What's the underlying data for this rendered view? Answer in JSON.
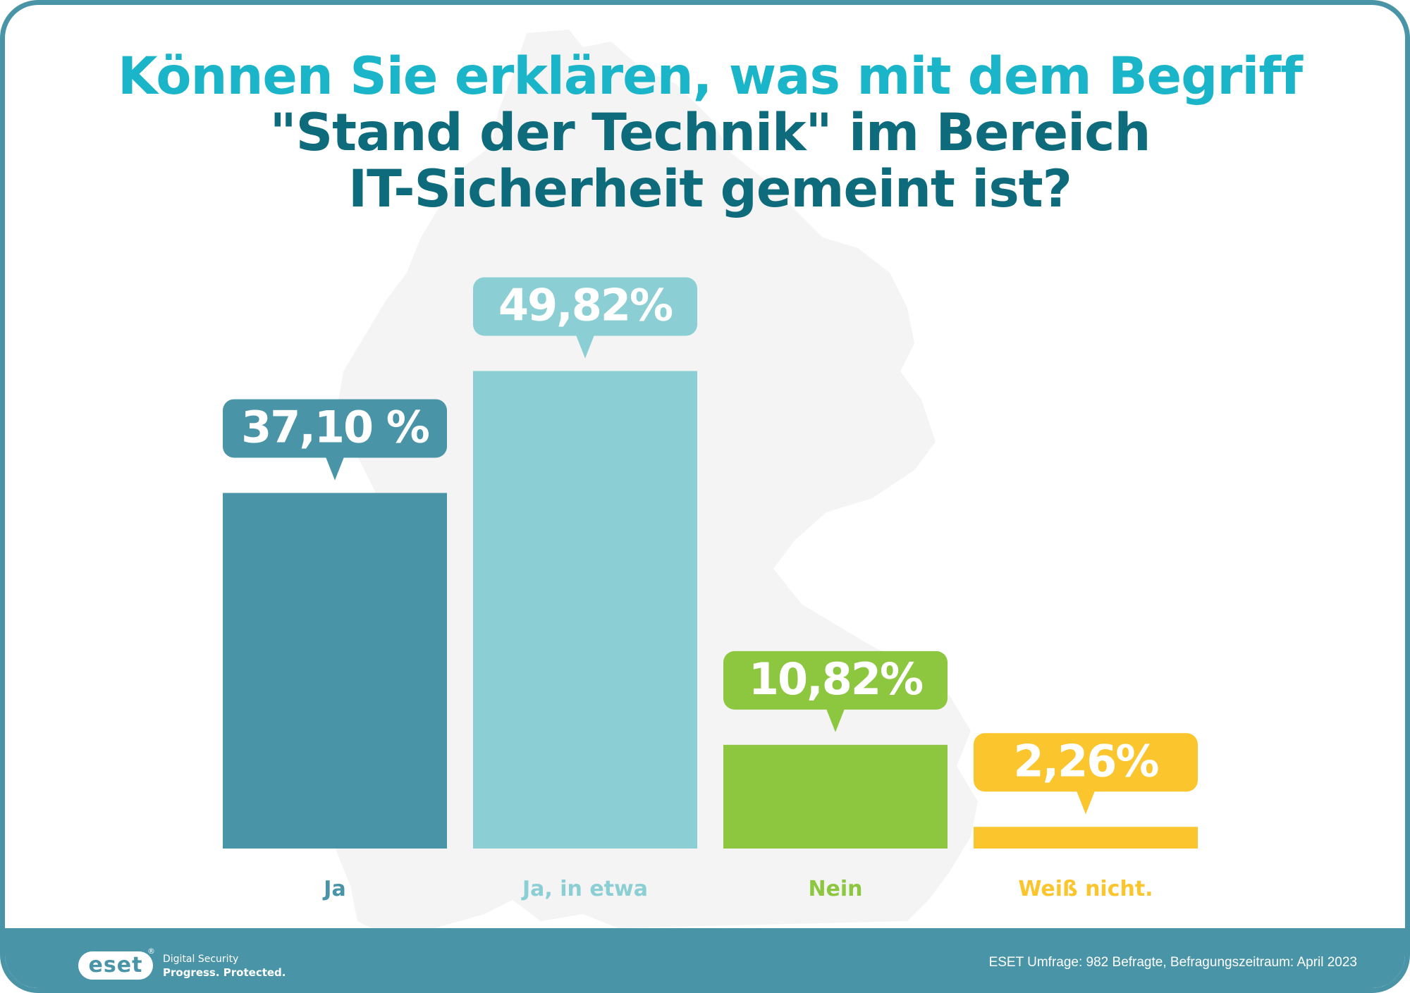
{
  "title": {
    "line1": "Können Sie erklären, was mit dem Begriff",
    "line2": "\"Stand der Technik\" im Bereich",
    "line3": "IT-Sicherheit gemeint ist?"
  },
  "chart_data": {
    "type": "bar",
    "categories": [
      "Ja",
      "Ja, in etwa",
      "Nein",
      "Weiß nicht."
    ],
    "values": [
      37.1,
      49.82,
      10.82,
      2.26
    ],
    "value_labels": [
      "37,10 %",
      "49,82%",
      "10,82%",
      "2,26%"
    ],
    "colors": [
      "#4a94a8",
      "#8bcfd4",
      "#8dc63f",
      "#fbc52d"
    ],
    "ylim": [
      0,
      100
    ],
    "grid": false,
    "legend": false
  },
  "footer": {
    "logo_text": "eset",
    "logo_reg": "®",
    "tagline_1": "Digital Security",
    "tagline_2": "Progress. Protected.",
    "source": "ESET Umfrage: 982 Befragte, Befragungszeitraum: April 2023"
  },
  "colors": {
    "frame": "#4a94a8",
    "title_accent": "#1ab5c8",
    "title_dark": "#0e6b7b",
    "map_background": "#f4f4f4"
  }
}
